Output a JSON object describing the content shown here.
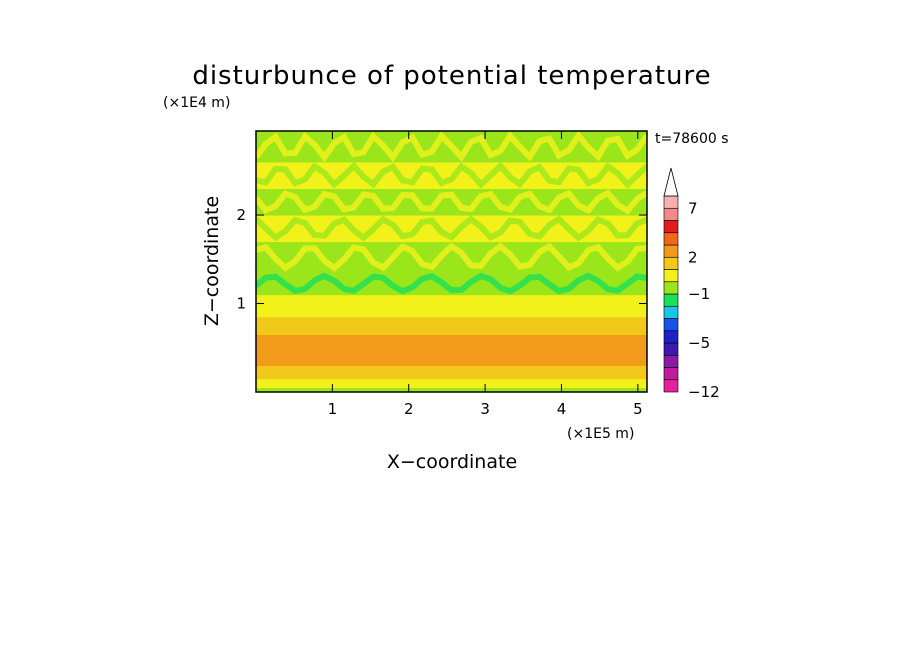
{
  "chart_data": {
    "type": "heatmap",
    "title": "disturbunce of potential temperature",
    "xlabel": "X−coordinate",
    "ylabel": "Z−coordinate",
    "x_unit": "(×1E5 m)",
    "y_unit": "(×1E4 m)",
    "time_label": "t=78600 s",
    "xlim": [
      0,
      5.12
    ],
    "ylim": [
      0,
      2.95
    ],
    "x_ticks": [
      1,
      2,
      3,
      4,
      5
    ],
    "y_ticks": [
      1,
      2
    ],
    "colorbar": {
      "levels": [
        -12,
        -10,
        -8,
        -6,
        -5,
        -4,
        -3,
        -2,
        -1,
        0,
        1,
        2,
        3,
        4,
        5,
        7,
        9,
        11
      ],
      "tick_labels": [
        "7",
        "2",
        "−1",
        "−5",
        "−12"
      ],
      "tick_values": [
        7,
        2,
        -1,
        -5,
        -12
      ],
      "extend": "max",
      "colors": [
        "#e6209e",
        "#c21ba0",
        "#8a1aa8",
        "#3a1ab0",
        "#1a22c8",
        "#1a52e6",
        "#1ac6e6",
        "#1ae05a",
        "#9ae61a",
        "#f2f21a",
        "#f2c81a",
        "#f29a1a",
        "#f2661a",
        "#e61a1a",
        "#f28a8a",
        "#f7b0b0",
        "#ffffff"
      ]
    },
    "layers_description_values": [
      {
        "z_from": 0.0,
        "z_to": 0.05,
        "value": -1
      },
      {
        "z_from": 0.05,
        "z_to": 0.15,
        "value": 0
      },
      {
        "z_from": 0.15,
        "z_to": 0.3,
        "value": 1
      },
      {
        "z_from": 0.3,
        "z_to": 0.65,
        "value": 2
      },
      {
        "z_from": 0.65,
        "z_to": 0.85,
        "value": 1
      },
      {
        "z_from": 0.85,
        "z_to": 1.1,
        "value": 0.5
      },
      {
        "z_from": 1.1,
        "z_to": 1.35,
        "value": -0.5
      },
      {
        "z_from": 1.35,
        "z_to": 1.7,
        "value": -1
      },
      {
        "z_from": 1.7,
        "z_to": 2.0,
        "value": 0.5
      },
      {
        "z_from": 2.0,
        "z_to": 2.3,
        "value": -1
      },
      {
        "z_from": 2.3,
        "z_to": 2.6,
        "value": 0.5
      },
      {
        "z_from": 2.6,
        "z_to": 2.95,
        "value": -0.5
      }
    ]
  }
}
